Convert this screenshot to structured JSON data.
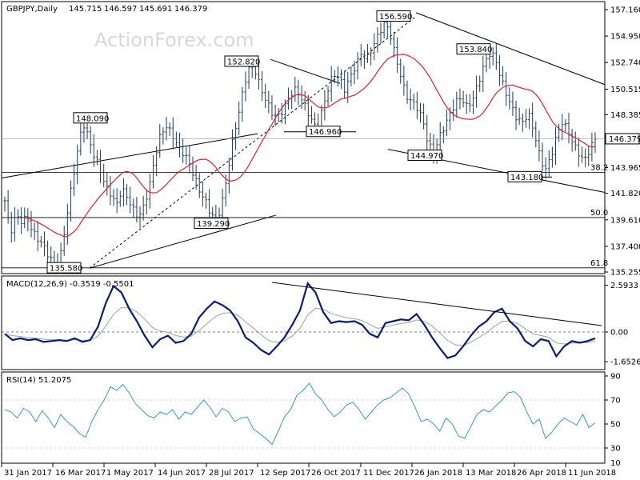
{
  "chart_data": [
    {
      "type": "candlestick",
      "header": {
        "symbol": "GBPJPY,Daily",
        "open": "145.715",
        "high": "146.597",
        "low": "145.691",
        "close": "146.379"
      },
      "watermark": "ActionForex.com",
      "ylim": [
        135.255,
        157.16
      ],
      "y_ticks": [
        "157.160",
        "154.950",
        "152.740",
        "150.515",
        "148.385",
        "146.175",
        "143.965",
        "141.820",
        "139.610",
        "137.400",
        "135.255"
      ],
      "last_price": "146.379",
      "close_series": [
        141.2,
        138.5,
        140.0,
        139.5,
        139.8,
        138.6,
        138.0,
        137.4,
        136.5,
        135.8,
        136.6,
        139.5,
        142.5,
        145.2,
        147.8,
        146.5,
        145.0,
        144.0,
        142.5,
        141.8,
        140.8,
        142.2,
        141.5,
        140.5,
        139.8,
        140.8,
        142.5,
        145.0,
        146.8,
        147.4,
        146.8,
        145.8,
        145.2,
        144.5,
        143.2,
        142.0,
        141.2,
        140.1,
        139.5,
        141.0,
        143.5,
        146.5,
        148.5,
        151.0,
        152.5,
        152.0,
        150.5,
        149.5,
        148.5,
        148.2,
        148.8,
        149.8,
        150.5,
        150.0,
        149.0,
        148.0,
        147.2,
        148.8,
        150.5,
        151.8,
        151.5,
        150.5,
        151.5,
        152.5,
        153.5,
        153.0,
        154.0,
        155.0,
        156.0,
        155.5,
        153.5,
        151.8,
        150.0,
        149.5,
        149.0,
        148.0,
        146.0,
        145.2,
        146.5,
        147.5,
        148.5,
        149.5,
        149.8,
        149.0,
        149.7,
        151.0,
        152.5,
        153.5,
        153.2,
        151.5,
        150.2,
        149.0,
        148.0,
        147.8,
        148.5,
        147.0,
        145.0,
        143.7,
        144.8,
        146.5,
        147.8,
        147.2,
        146.0,
        145.2,
        144.5,
        145.5,
        146.379
      ],
      "price_labels": [
        {
          "value": 148.09,
          "text": "148.090"
        },
        {
          "value": 152.82,
          "text": "152.820"
        },
        {
          "value": 146.96,
          "text": "146.960"
        },
        {
          "value": 156.59,
          "text": "156.590"
        },
        {
          "value": 153.84,
          "text": "153.840"
        },
        {
          "value": 144.97,
          "text": "144.970"
        },
        {
          "value": 143.18,
          "text": "143.180"
        },
        {
          "value": 139.29,
          "text": "139.290"
        },
        {
          "value": 135.58,
          "text": "135.580"
        }
      ],
      "fibonacci_levels": [
        {
          "label": "38.2",
          "value": 143.57
        },
        {
          "label": "50.0",
          "value": 139.8
        },
        {
          "label": "61.8",
          "value": 135.6
        }
      ],
      "x_ticks": [
        "31 Jan 2017",
        "16 Mar 2017",
        "1 May 2017",
        "14 Jun 2017",
        "28 Jul 2017",
        "12 Sep 2017",
        "26 Oct 2017",
        "11 Dec 2017",
        "26 Jan 2018",
        "13 Mar 2018",
        "26 Apr 2018",
        "11 Jun 2018"
      ],
      "colors": {
        "moving_average": "#e8202a",
        "trendlines": "#000000",
        "bars": "#1f3a5f",
        "levels": "#000000"
      }
    },
    {
      "type": "line",
      "title": "MACD(12,26,9) -0.3519 -0.5501",
      "ylim": [
        -2.0,
        2.8
      ],
      "y_ticks": [
        "2.5933",
        "0.00",
        "-1.6526"
      ],
      "macd_series": [
        -0.1,
        -0.45,
        -0.35,
        -0.45,
        -0.4,
        -0.55,
        -0.5,
        -0.45,
        -0.5,
        -0.35,
        -0.55,
        -0.45,
        0.3,
        1.6,
        2.55,
        2.2,
        1.3,
        0.6,
        -0.2,
        -0.85,
        -0.4,
        -0.2,
        -0.6,
        -0.5,
        -0.1,
        0.8,
        1.3,
        1.7,
        1.5,
        1.2,
        0.6,
        -0.3,
        -0.6,
        -1.0,
        -1.25,
        -0.8,
        -0.3,
        0.4,
        1.2,
        2.7,
        2.2,
        1.1,
        0.5,
        0.6,
        0.55,
        0.6,
        0.4,
        -0.1,
        -0.3,
        0.5,
        0.6,
        0.7,
        0.65,
        1.0,
        0.4,
        -0.3,
        -0.9,
        -1.45,
        -1.3,
        -0.8,
        -0.2,
        0.3,
        0.6,
        1.1,
        1.3,
        0.6,
        0.2,
        -0.5,
        -0.8,
        -0.4,
        -0.5,
        -1.35,
        -0.8,
        -0.5,
        -0.6,
        -0.5,
        -0.35
      ],
      "colors": {
        "macd": "#0a1c7a",
        "signal": "#a0a0a0"
      }
    },
    {
      "type": "line",
      "title": "RSI(14) 51.2075",
      "ylim": [
        18,
        90
      ],
      "y_ticks": [
        "90",
        "70",
        "50",
        "30",
        "10"
      ],
      "series": [
        62,
        60,
        55,
        63,
        60,
        52,
        61,
        55,
        47,
        58,
        52,
        48,
        42,
        39,
        52,
        62,
        70,
        81,
        78,
        83,
        76,
        67,
        62,
        57,
        55,
        60,
        58,
        62,
        54,
        60,
        58,
        64,
        70,
        64,
        56,
        63,
        60,
        52,
        55,
        56,
        46,
        42,
        38,
        33,
        44,
        56,
        62,
        74,
        78,
        84,
        75,
        70,
        62,
        56,
        60,
        66,
        68,
        62,
        54,
        60,
        66,
        70,
        72,
        76,
        80,
        75,
        64,
        52,
        54,
        50,
        44,
        55,
        50,
        40,
        38,
        48,
        58,
        62,
        60,
        65,
        70,
        76,
        77,
        72,
        60,
        50,
        54,
        38,
        43,
        50,
        55,
        52,
        49,
        58,
        47,
        51
      ],
      "colors": {
        "rsi": "#3a96c8"
      }
    }
  ]
}
